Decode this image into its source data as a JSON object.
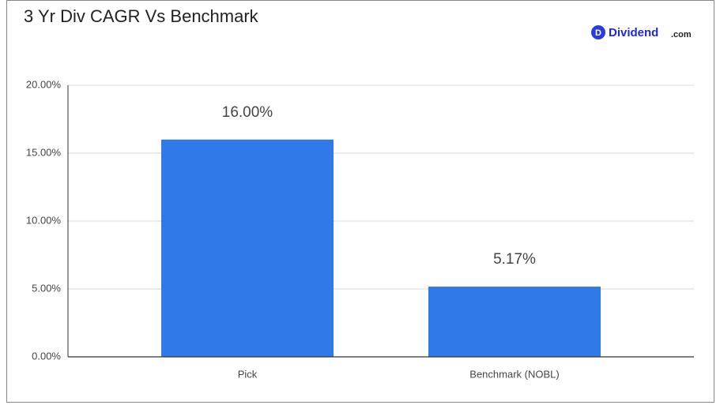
{
  "chart_data": {
    "type": "bar",
    "title": "3 Yr Div CAGR Vs Benchmark",
    "brand": {
      "icon": "D",
      "name": "Dividend",
      "domain": ".com"
    },
    "categories": [
      "Pick",
      "Benchmark (NOBL)"
    ],
    "values": [
      16,
      5.17
    ],
    "value_labels": [
      "16.00%",
      "5.17%"
    ],
    "color": "#3079e8",
    "ylim": [
      0,
      20
    ],
    "yticks": [
      {
        "value": 0,
        "label": "0.00%"
      },
      {
        "value": 5,
        "label": "5.00%"
      },
      {
        "value": 10,
        "label": "10.00%"
      },
      {
        "value": 15,
        "label": "15.00%"
      },
      {
        "value": 20,
        "label": "20.00%"
      }
    ],
    "grid": true
  }
}
